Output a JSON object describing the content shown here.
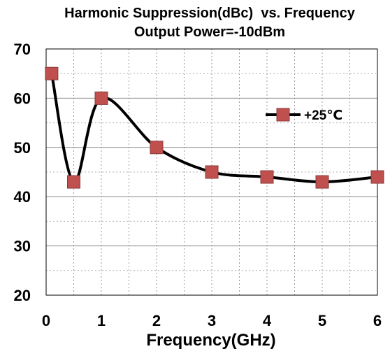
{
  "chart_data": {
    "type": "line",
    "title": "Harmonic Suppression(dBc)  vs. Frequency",
    "subtitle": "Output Power=-10dBm",
    "xlabel": "Frequency(GHz)",
    "ylabel": "",
    "xlim": [
      0,
      6
    ],
    "ylim": [
      20,
      70
    ],
    "x_ticks": [
      0,
      1,
      2,
      3,
      4,
      5,
      6
    ],
    "y_ticks": [
      20,
      30,
      40,
      50,
      60,
      70
    ],
    "x_tick_labels": [
      "0",
      "1",
      "2",
      "3",
      "4",
      "5",
      "6"
    ],
    "y_tick_labels": [
      "20",
      "30",
      "40",
      "50",
      "60",
      "70"
    ],
    "x_minor_step": 0.5,
    "y_minor_step": 5,
    "grid": true,
    "legend_position": "upper-right",
    "series": [
      {
        "name": "+25℃",
        "x": [
          0.1,
          0.5,
          1,
          2,
          3,
          4,
          5,
          6
        ],
        "y": [
          65,
          43,
          60,
          50,
          45,
          44,
          43,
          44
        ],
        "line_color": "#000000",
        "marker": "square",
        "marker_color": "#c0504d"
      }
    ]
  }
}
